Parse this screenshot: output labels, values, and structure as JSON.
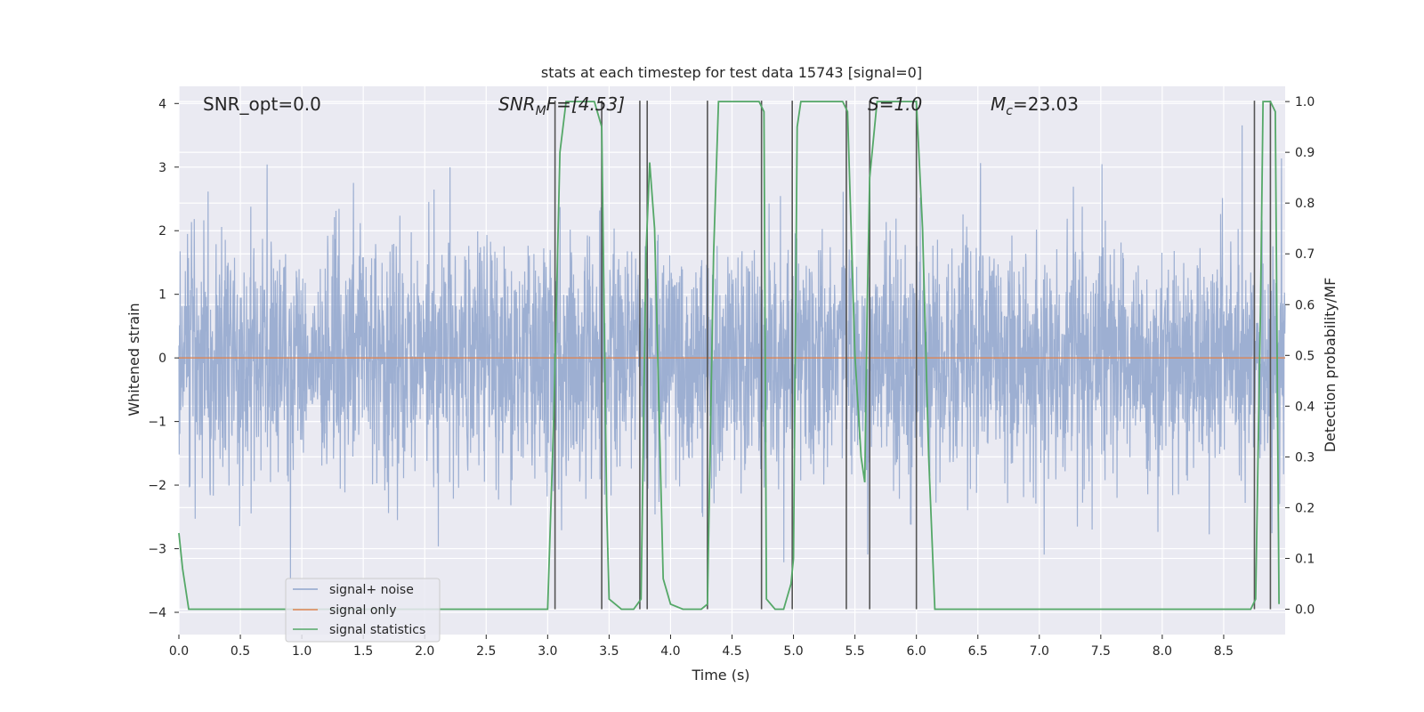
{
  "chart_data": {
    "type": "line",
    "title": "stats at each timestep for test data 15743 [signal=0]",
    "xlabel": "Time (s)",
    "ylabel_left": "Whitened strain",
    "ylabel_right": "Detection probability/MF",
    "xlim": [
      0.0,
      9.0
    ],
    "ylim_left": [
      -4.35,
      4.27
    ],
    "ylim_right": [
      -0.05,
      1.03
    ],
    "x_ticks": [
      "0.0",
      "0.5",
      "1.0",
      "1.5",
      "2.0",
      "2.5",
      "3.0",
      "3.5",
      "4.0",
      "4.5",
      "5.0",
      "5.5",
      "6.0",
      "6.5",
      "7.0",
      "7.5",
      "8.0",
      "8.5"
    ],
    "y_left_ticks": [
      "−4",
      "−3",
      "−2",
      "−1",
      "0",
      "1",
      "2",
      "3",
      "4"
    ],
    "y_right_ticks": [
      "0.0",
      "0.1",
      "0.2",
      "0.3",
      "0.4",
      "0.5",
      "0.6",
      "0.7",
      "0.8",
      "0.9",
      "1.0"
    ],
    "annotations": {
      "snr_opt": "SNR_opt=0.0",
      "snr_mf_base": "SNR",
      "snr_mf_sub": "M",
      "snr_mf_rest": "F=[4.53]",
      "s_val": "S=1.0",
      "mc_base": "M",
      "mc_sub": "c",
      "mc_rest": "=23.03"
    },
    "legend": {
      "placement": "lower-left",
      "entries": [
        "signal+ noise",
        "signal only",
        "signal statistics"
      ]
    },
    "colors": {
      "noise": "#8fa4cc",
      "signal": "#dd8452",
      "stats": "#55a868",
      "vlines": "#555555",
      "background": "#eaeaf2",
      "grid": "#ffffff"
    },
    "noise_sigma": 0.95,
    "signal_only": [
      [
        0.0,
        0.0
      ],
      [
        9.0,
        0.0
      ]
    ],
    "stats_series": [
      [
        0.0,
        0.15
      ],
      [
        0.03,
        0.08
      ],
      [
        0.08,
        0.0
      ],
      [
        0.15,
        0.0
      ],
      [
        3.0,
        0.0
      ],
      [
        3.05,
        0.38
      ],
      [
        3.1,
        0.9
      ],
      [
        3.15,
        1.0
      ],
      [
        3.38,
        1.0
      ],
      [
        3.44,
        0.95
      ],
      [
        3.48,
        0.2
      ],
      [
        3.5,
        0.02
      ],
      [
        3.6,
        0.0
      ],
      [
        3.7,
        0.0
      ],
      [
        3.76,
        0.02
      ],
      [
        3.8,
        0.7
      ],
      [
        3.83,
        0.88
      ],
      [
        3.87,
        0.75
      ],
      [
        3.94,
        0.06
      ],
      [
        4.0,
        0.01
      ],
      [
        4.1,
        0.0
      ],
      [
        4.25,
        0.0
      ],
      [
        4.3,
        0.01
      ],
      [
        4.35,
        0.7
      ],
      [
        4.39,
        1.0
      ],
      [
        4.72,
        1.0
      ],
      [
        4.76,
        0.98
      ],
      [
        4.78,
        0.02
      ],
      [
        4.85,
        0.0
      ],
      [
        4.92,
        0.0
      ],
      [
        4.98,
        0.05
      ],
      [
        5.0,
        0.1
      ],
      [
        5.03,
        0.95
      ],
      [
        5.06,
        1.0
      ],
      [
        5.4,
        1.0
      ],
      [
        5.44,
        0.98
      ],
      [
        5.5,
        0.5
      ],
      [
        5.55,
        0.3
      ],
      [
        5.58,
        0.25
      ],
      [
        5.6,
        0.6
      ],
      [
        5.62,
        0.85
      ],
      [
        5.68,
        1.0
      ],
      [
        6.0,
        1.0
      ],
      [
        6.05,
        0.75
      ],
      [
        6.1,
        0.3
      ],
      [
        6.15,
        0.0
      ],
      [
        8.72,
        0.0
      ],
      [
        8.76,
        0.02
      ],
      [
        8.8,
        0.6
      ],
      [
        8.82,
        1.0
      ],
      [
        8.88,
        1.0
      ],
      [
        8.92,
        0.98
      ],
      [
        8.95,
        0.01
      ]
    ],
    "vlines_x": [
      3.06,
      3.44,
      3.75,
      3.81,
      4.3,
      4.74,
      4.99,
      5.43,
      5.62,
      6.0,
      8.75,
      8.88
    ]
  }
}
